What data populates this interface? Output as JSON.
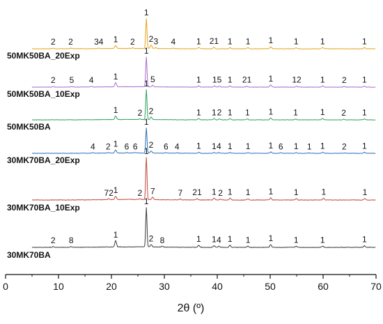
{
  "chart_data": {
    "type": "line",
    "xlabel": "2θ (º)",
    "xlim": [
      0,
      70
    ],
    "xticks": [
      0,
      10,
      20,
      30,
      40,
      50,
      60,
      70
    ],
    "grid": false,
    "series": [
      {
        "name": "50MK50BA_20Exp",
        "color": "#e8a317",
        "peaks": [
          {
            "x": 9.0,
            "h": 2,
            "label": "2"
          },
          {
            "x": 12.3,
            "h": 2,
            "label": "2"
          },
          {
            "x": 17.6,
            "h": 2,
            "label": "34"
          },
          {
            "x": 20.8,
            "h": 10,
            "label": "1"
          },
          {
            "x": 24.0,
            "h": 2,
            "label": "2"
          },
          {
            "x": 26.6,
            "h": 100,
            "label": "1"
          },
          {
            "x": 27.5,
            "h": 12,
            "label": "2"
          },
          {
            "x": 28.4,
            "h": 3,
            "label": "3"
          },
          {
            "x": 31.7,
            "h": 2,
            "label": "4"
          },
          {
            "x": 36.5,
            "h": 4,
            "label": "1"
          },
          {
            "x": 39.4,
            "h": 5,
            "label": "21"
          },
          {
            "x": 42.4,
            "h": 4,
            "label": "1"
          },
          {
            "x": 45.8,
            "h": 4,
            "label": "1"
          },
          {
            "x": 50.1,
            "h": 7,
            "label": "1"
          },
          {
            "x": 54.9,
            "h": 3,
            "label": "1"
          },
          {
            "x": 59.9,
            "h": 4,
            "label": "1"
          },
          {
            "x": 67.8,
            "h": 4,
            "label": "1"
          }
        ]
      },
      {
        "name": "50MK50BA_10Exp",
        "color": "#a76fce",
        "peaks": [
          {
            "x": 9.0,
            "h": 2,
            "label": "2"
          },
          {
            "x": 12.5,
            "h": 2,
            "label": "5"
          },
          {
            "x": 16.2,
            "h": 2,
            "label": "4"
          },
          {
            "x": 20.8,
            "h": 14,
            "label": "1"
          },
          {
            "x": 26.6,
            "h": 100,
            "label": "1"
          },
          {
            "x": 27.8,
            "h": 5,
            "label": "5"
          },
          {
            "x": 36.5,
            "h": 4,
            "label": "1"
          },
          {
            "x": 39.5,
            "h": 4,
            "label": "1"
          },
          {
            "x": 40.4,
            "h": 3,
            "label": "5"
          },
          {
            "x": 42.4,
            "h": 4,
            "label": "1"
          },
          {
            "x": 45.6,
            "h": 3,
            "label": "21"
          },
          {
            "x": 50.1,
            "h": 7,
            "label": "1"
          },
          {
            "x": 55.0,
            "h": 3,
            "label": "12"
          },
          {
            "x": 59.9,
            "h": 4,
            "label": "1"
          },
          {
            "x": 64.0,
            "h": 2,
            "label": "2"
          },
          {
            "x": 67.8,
            "h": 3,
            "label": "1"
          }
        ]
      },
      {
        "name": "50MK50BA",
        "color": "#2e9f60",
        "peaks": [
          {
            "x": 20.8,
            "h": 12,
            "label": "1"
          },
          {
            "x": 25.4,
            "h": 2,
            "label": "2"
          },
          {
            "x": 26.6,
            "h": 100,
            "label": "1"
          },
          {
            "x": 27.5,
            "h": 8,
            "label": "2"
          },
          {
            "x": 36.5,
            "h": 4,
            "label": "1"
          },
          {
            "x": 39.4,
            "h": 4,
            "label": "1"
          },
          {
            "x": 40.4,
            "h": 3,
            "label": "2"
          },
          {
            "x": 42.4,
            "h": 4,
            "label": "1"
          },
          {
            "x": 45.7,
            "h": 3,
            "label": "1"
          },
          {
            "x": 50.1,
            "h": 6,
            "label": "1"
          },
          {
            "x": 54.8,
            "h": 3,
            "label": "1"
          },
          {
            "x": 59.9,
            "h": 5,
            "label": "1"
          },
          {
            "x": 63.9,
            "h": 2,
            "label": "2"
          },
          {
            "x": 67.8,
            "h": 3,
            "label": "1"
          }
        ]
      },
      {
        "name": "30MK70BA_20Exp",
        "color": "#2a6fb8",
        "peaks": [
          {
            "x": 16.5,
            "h": 2,
            "label": "4"
          },
          {
            "x": 19.4,
            "h": 2,
            "label": "2"
          },
          {
            "x": 20.8,
            "h": 12,
            "label": "1"
          },
          {
            "x": 22.9,
            "h": 2,
            "label": "6"
          },
          {
            "x": 24.5,
            "h": 2,
            "label": "6"
          },
          {
            "x": 26.6,
            "h": 100,
            "label": "1"
          },
          {
            "x": 27.5,
            "h": 8,
            "label": "2"
          },
          {
            "x": 30.3,
            "h": 2,
            "label": "6"
          },
          {
            "x": 32.4,
            "h": 2,
            "label": "4"
          },
          {
            "x": 36.5,
            "h": 4,
            "label": "1"
          },
          {
            "x": 39.4,
            "h": 3,
            "label": "1"
          },
          {
            "x": 40.3,
            "h": 3,
            "label": "4"
          },
          {
            "x": 42.4,
            "h": 3,
            "label": "1"
          },
          {
            "x": 45.8,
            "h": 3,
            "label": "1"
          },
          {
            "x": 50.1,
            "h": 6,
            "label": "1"
          },
          {
            "x": 52.0,
            "h": 2,
            "label": "6"
          },
          {
            "x": 54.9,
            "h": 3,
            "label": "1"
          },
          {
            "x": 57.4,
            "h": 2,
            "label": "1"
          },
          {
            "x": 59.9,
            "h": 4,
            "label": "1"
          },
          {
            "x": 64.0,
            "h": 2,
            "label": "2"
          },
          {
            "x": 67.8,
            "h": 4,
            "label": "1"
          }
        ]
      },
      {
        "name": "30MK70BA_10Exp",
        "color": "#c0473a",
        "peaks": [
          {
            "x": 19.5,
            "h": 2,
            "label": "72"
          },
          {
            "x": 20.8,
            "h": 8,
            "label": "1"
          },
          {
            "x": 25.4,
            "h": 2,
            "label": "2"
          },
          {
            "x": 26.6,
            "h": 100,
            "label": "1"
          },
          {
            "x": 27.8,
            "h": 6,
            "label": "7"
          },
          {
            "x": 33.0,
            "h": 2,
            "label": "7"
          },
          {
            "x": 36.2,
            "h": 3,
            "label": "21"
          },
          {
            "x": 39.4,
            "h": 4,
            "label": "1"
          },
          {
            "x": 40.6,
            "h": 2,
            "label": "2"
          },
          {
            "x": 42.4,
            "h": 4,
            "label": "1"
          },
          {
            "x": 45.8,
            "h": 3,
            "label": "1"
          },
          {
            "x": 50.1,
            "h": 5,
            "label": "1"
          },
          {
            "x": 54.9,
            "h": 3,
            "label": "1"
          },
          {
            "x": 60.1,
            "h": 4,
            "label": "1"
          },
          {
            "x": 67.9,
            "h": 3,
            "label": "1"
          }
        ]
      },
      {
        "name": "30MK70BA",
        "color": "#3a3a3a",
        "peaks": [
          {
            "x": 9.0,
            "h": 2,
            "label": "2"
          },
          {
            "x": 12.4,
            "h": 2,
            "label": "8"
          },
          {
            "x": 20.8,
            "h": 16,
            "label": "1"
          },
          {
            "x": 26.6,
            "h": 100,
            "label": "1"
          },
          {
            "x": 27.5,
            "h": 6,
            "label": "2"
          },
          {
            "x": 29.6,
            "h": 2,
            "label": "8"
          },
          {
            "x": 36.5,
            "h": 5,
            "label": "1"
          },
          {
            "x": 39.4,
            "h": 4,
            "label": "1"
          },
          {
            "x": 40.3,
            "h": 3,
            "label": "4"
          },
          {
            "x": 42.4,
            "h": 5,
            "label": "1"
          },
          {
            "x": 45.8,
            "h": 3,
            "label": "1"
          },
          {
            "x": 50.1,
            "h": 7,
            "label": "1"
          },
          {
            "x": 54.9,
            "h": 3,
            "label": "1"
          },
          {
            "x": 59.9,
            "h": 3,
            "label": "1"
          },
          {
            "x": 67.8,
            "h": 4,
            "label": "1"
          }
        ]
      }
    ]
  }
}
